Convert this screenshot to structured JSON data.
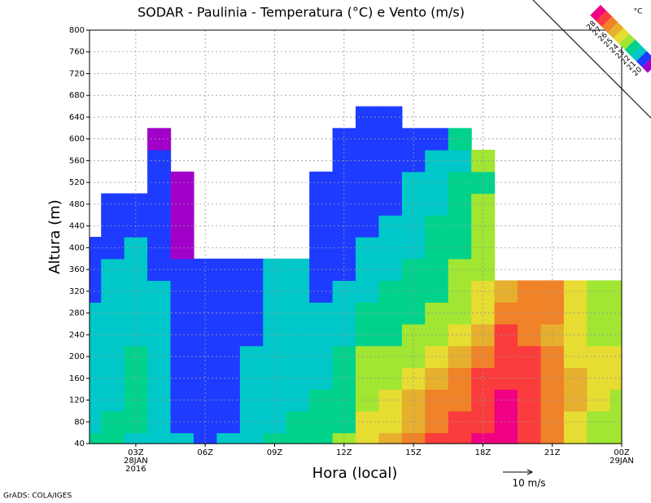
{
  "chart_data": {
    "type": "heatmap",
    "title": "SODAR - Paulinia - Temperatura (°C) e Vento (m/s)",
    "xlabel": "Hora (local)",
    "ylabel": "Altura (m)",
    "credit": "GrADS: COLA/IGES",
    "reference_vector": "10 m/s",
    "colorbar_unit": "°C",
    "levels": [
      20,
      21,
      22,
      23,
      24,
      25,
      26,
      27,
      28
    ],
    "colors": [
      "#a000c8",
      "#1e3cff",
      "#00c8c8",
      "#00d28c",
      "#a0e632",
      "#e6dc32",
      "#e6af2d",
      "#f08228",
      "#fa3c3c",
      "#f00082"
    ],
    "x": [
      1,
      2,
      3,
      4,
      5,
      6,
      7,
      8,
      9,
      10,
      11,
      12,
      13,
      14,
      15,
      16,
      17,
      18,
      19,
      20,
      21,
      22,
      23,
      24
    ],
    "y": [
      40,
      80,
      120,
      160,
      200,
      240,
      280,
      320,
      360,
      400,
      440,
      480,
      520,
      560,
      600,
      640
    ],
    "values": [
      [
        22.5,
        21.5,
        21.5,
        21.5,
        21.5,
        21.5,
        21.5,
        20.5,
        20.5,
        20.5,
        null,
        null,
        null,
        null,
        null,
        null
      ],
      [
        22.5,
        22.5,
        21.5,
        21.5,
        21.5,
        21.5,
        21.5,
        21.5,
        21.5,
        20.5,
        20.5,
        20.5,
        null,
        null,
        null,
        null
      ],
      [
        21.5,
        22.5,
        22.5,
        22.5,
        22.5,
        21.5,
        21.5,
        21.5,
        21.5,
        21.5,
        20.5,
        20.5,
        null,
        null,
        null,
        null
      ],
      [
        21.5,
        21.5,
        21.5,
        21.5,
        21.5,
        21.5,
        21.5,
        21.5,
        20.5,
        20.5,
        20.5,
        20.5,
        20.5,
        20.5,
        19.5,
        null
      ],
      [
        21.5,
        20.5,
        20.5,
        20.5,
        20.5,
        20.5,
        20.5,
        20.5,
        20.5,
        19.5,
        19.5,
        19.5,
        19.5,
        null,
        null,
        null
      ],
      [
        20.5,
        20.5,
        20.5,
        20.5,
        20.5,
        20.5,
        20.5,
        20.5,
        20.5,
        null,
        null,
        null,
        null,
        null,
        null,
        null
      ],
      [
        21.5,
        20.5,
        20.5,
        20.5,
        20.5,
        20.5,
        20.5,
        20.5,
        20.5,
        null,
        null,
        null,
        null,
        null,
        null,
        null
      ],
      [
        21.5,
        21.5,
        21.5,
        21.5,
        21.5,
        20.5,
        20.5,
        20.5,
        20.5,
        null,
        null,
        null,
        null,
        null,
        null,
        null
      ],
      [
        22.5,
        21.5,
        21.5,
        21.5,
        21.5,
        21.5,
        21.5,
        21.5,
        21.5,
        null,
        null,
        null,
        null,
        null,
        null,
        null
      ],
      [
        22.5,
        22.5,
        21.5,
        21.5,
        21.5,
        21.5,
        21.5,
        21.5,
        21.5,
        null,
        null,
        null,
        null,
        null,
        null,
        null
      ],
      [
        22.5,
        22.5,
        22.5,
        21.5,
        21.5,
        21.5,
        21.5,
        20.5,
        20.5,
        20.5,
        20.5,
        20.5,
        20.5,
        null,
        null,
        null
      ],
      [
        23.5,
        22.5,
        22.5,
        22.5,
        22.5,
        21.5,
        21.5,
        21.5,
        20.5,
        20.5,
        20.5,
        20.5,
        20.5,
        20.5,
        20.5,
        null
      ],
      [
        24.5,
        24.5,
        23.5,
        23.5,
        23.5,
        22.5,
        22.5,
        21.5,
        21.5,
        21.5,
        20.5,
        20.5,
        20.5,
        20.5,
        20.5,
        20.5
      ],
      [
        25.5,
        24.5,
        24.5,
        23.5,
        23.5,
        22.5,
        22.5,
        22.5,
        21.5,
        21.5,
        21.5,
        20.5,
        20.5,
        20.5,
        20.5,
        20.5
      ],
      [
        26.5,
        25.5,
        25.5,
        24.5,
        23.5,
        23.5,
        22.5,
        22.5,
        22.5,
        21.5,
        21.5,
        21.5,
        21.5,
        20.5,
        20.5,
        null
      ],
      [
        27.5,
        26.5,
        26.5,
        25.5,
        24.5,
        23.5,
        23.5,
        22.5,
        22.5,
        22.5,
        22.5,
        21.5,
        21.5,
        21.5,
        20.5,
        null
      ],
      [
        27.5,
        27.5,
        26.5,
        26.5,
        25.5,
        24.5,
        23.5,
        23.5,
        23.5,
        22.5,
        22.5,
        22.5,
        22.5,
        21.5,
        22.5,
        null
      ],
      [
        28.5,
        27.5,
        27.5,
        27.5,
        26.5,
        25.5,
        24.5,
        24.5,
        23.5,
        23.5,
        23.5,
        23.5,
        22.5,
        23.5,
        null,
        null
      ],
      [
        28.5,
        28.5,
        28.5,
        27.5,
        27.5,
        27.5,
        26.5,
        25.5,
        null,
        null,
        null,
        null,
        null,
        null,
        null,
        null
      ],
      [
        27.5,
        27.5,
        27.5,
        27.5,
        27.5,
        26.5,
        26.5,
        26.5,
        null,
        null,
        null,
        null,
        null,
        null,
        null,
        null
      ],
      [
        26.5,
        26.5,
        26.5,
        26.5,
        26.5,
        25.5,
        26.5,
        26.5,
        null,
        null,
        null,
        null,
        null,
        null,
        null,
        null
      ],
      [
        24.5,
        24.5,
        25.5,
        25.5,
        24.5,
        24.5,
        24.5,
        24.5,
        null,
        null,
        null,
        null,
        null,
        null,
        null,
        null
      ],
      [
        23.5,
        23.5,
        24.5,
        24.5,
        24.5,
        23.5,
        23.5,
        23.5,
        null,
        null,
        null,
        null,
        null,
        null,
        null,
        null
      ],
      [
        23.5,
        23.5,
        23.5,
        24.5,
        24.5,
        23.5,
        23.5,
        23.5,
        null,
        null,
        null,
        null,
        null,
        null,
        null,
        null
      ]
    ],
    "xlim": [
      1,
      24
    ],
    "ylim": [
      40,
      800
    ],
    "xticks": [
      {
        "value": 3,
        "label": "03Z"
      },
      {
        "value": 6,
        "label": "06Z"
      },
      {
        "value": 9,
        "label": "09Z"
      },
      {
        "value": 12,
        "label": "12Z"
      },
      {
        "value": 15,
        "label": "15Z"
      },
      {
        "value": 18,
        "label": "18Z"
      },
      {
        "value": 21,
        "label": "21Z"
      },
      {
        "value": 24,
        "label": "00Z"
      }
    ],
    "date_labels": [
      {
        "value": 3,
        "label": "28JAN"
      },
      {
        "value": 3,
        "label": "2016"
      },
      {
        "value": 24,
        "label": "29JAN"
      }
    ],
    "yticks": [
      40,
      80,
      120,
      160,
      200,
      240,
      280,
      320,
      360,
      400,
      440,
      480,
      520,
      560,
      600,
      640,
      680,
      720,
      760,
      800
    ],
    "grid": true
  }
}
